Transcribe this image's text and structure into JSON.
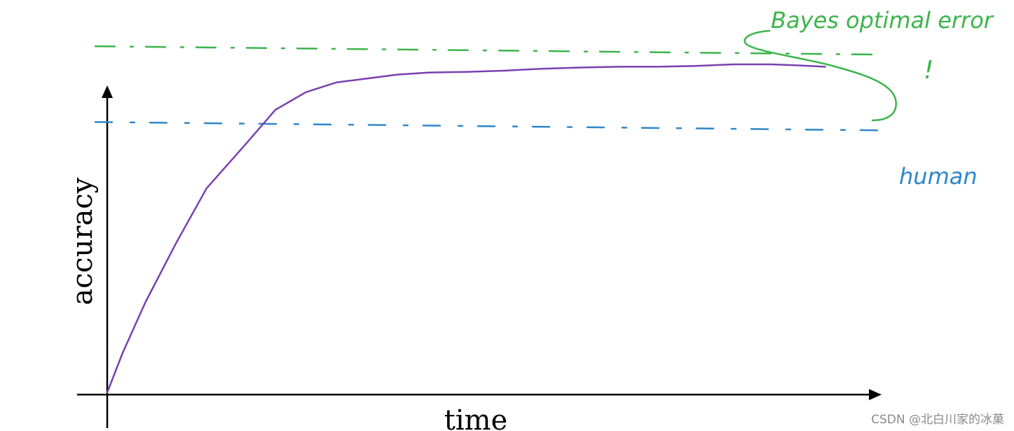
{
  "chart_data": {
    "type": "line",
    "xlabel": "time",
    "ylabel": "accuracy",
    "xlim": [
      0,
      1
    ],
    "ylim": [
      0,
      1
    ],
    "grid": false,
    "series": [
      {
        "color": "#7b3fb0",
        "x": [
          0.0,
          0.02,
          0.05,
          0.09,
          0.13,
          0.18,
          0.22,
          0.26,
          0.3,
          0.34,
          0.38,
          0.42,
          0.47,
          0.52,
          0.57,
          0.62,
          0.67,
          0.72,
          0.77,
          0.82,
          0.87,
          0.91,
          0.94
        ],
        "y": [
          0.0,
          0.1,
          0.23,
          0.38,
          0.52,
          0.63,
          0.72,
          0.765,
          0.79,
          0.8,
          0.81,
          0.815,
          0.817,
          0.82,
          0.825,
          0.828,
          0.83,
          0.83,
          0.832,
          0.836,
          0.836,
          0.833,
          0.83
        ]
      }
    ],
    "reference_lines": [
      {
        "name": "Bayes optimal error",
        "y": 0.875,
        "color": "#3cb44b",
        "style": "dashed"
      },
      {
        "name": "human",
        "y": 0.682,
        "color": "#2f86c8",
        "style": "dashed"
      }
    ],
    "annotations": [
      {
        "text": "Bayes optimal error",
        "color": "#3cb44b"
      },
      {
        "text": "!",
        "color": "#3cb44b"
      },
      {
        "text": "human",
        "color": "#2f86c8"
      }
    ]
  },
  "watermark": "CSDN @北白川家的冰菓"
}
